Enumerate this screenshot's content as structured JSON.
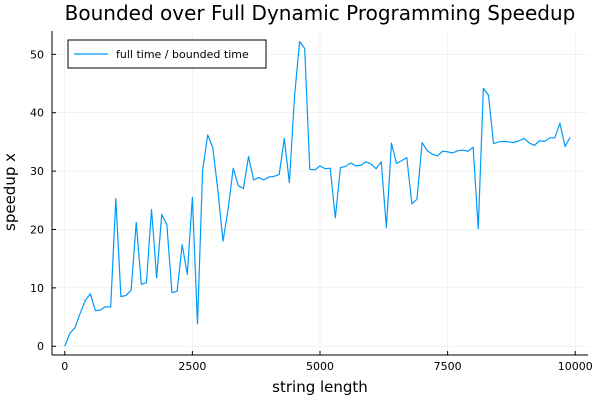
{
  "chart_data": {
    "type": "line",
    "title": "Bounded over Full Dynamic Programming Speedup",
    "xlabel": "string length",
    "ylabel": "speedup x",
    "xlim": [
      -250,
      10250
    ],
    "ylim": [
      -1.5,
      54
    ],
    "xticks": [
      0,
      2500,
      5000,
      7500,
      10000
    ],
    "xtick_labels": [
      "0",
      "2500",
      "5000",
      "7500",
      "10000"
    ],
    "yticks": [
      0,
      10,
      20,
      30,
      40,
      50
    ],
    "ytick_labels": [
      "0",
      "10",
      "20",
      "30",
      "40",
      "50"
    ],
    "grid": true,
    "legend_position": "top-left",
    "series": [
      {
        "name": "full time / bounded time",
        "color": "#009AFA",
        "x": [
          0,
          100,
          200,
          300,
          400,
          500,
          600,
          700,
          800,
          900,
          1000,
          1100,
          1200,
          1300,
          1400,
          1500,
          1600,
          1700,
          1800,
          1900,
          2000,
          2100,
          2200,
          2300,
          2400,
          2500,
          2600,
          2700,
          2800,
          2900,
          3000,
          3100,
          3200,
          3300,
          3400,
          3500,
          3600,
          3700,
          3800,
          3900,
          4000,
          4100,
          4200,
          4300,
          4400,
          4500,
          4600,
          4700,
          4800,
          4900,
          5000,
          5100,
          5200,
          5300,
          5400,
          5500,
          5600,
          5700,
          5800,
          5900,
          6000,
          6100,
          6200,
          6300,
          6400,
          6500,
          6600,
          6700,
          6800,
          6900,
          7000,
          7100,
          7200,
          7300,
          7400,
          7500,
          7600,
          7700,
          7800,
          7900,
          8000,
          8100,
          8200,
          8300,
          8400,
          8500,
          8600,
          8700,
          8800,
          8900,
          9000,
          9100,
          9200,
          9300,
          9400,
          9500,
          9600,
          9700,
          9800,
          9900
        ],
        "y": [
          0,
          2.2,
          3.2,
          5.6,
          7.8,
          9.0,
          6.1,
          6.2,
          6.8,
          6.7,
          25.3,
          8.5,
          8.7,
          9.6,
          21.2,
          10.6,
          10.9,
          23.4,
          11.7,
          22.6,
          20.8,
          9.2,
          9.4,
          17.4,
          12.3,
          25.5,
          3.8,
          30.1,
          36.2,
          34.0,
          26.7,
          18.0,
          23.5,
          30.5,
          27.5,
          27.0,
          32.5,
          28.5,
          28.9,
          28.5,
          29.0,
          29.1,
          29.4,
          35.6,
          28.0,
          42.7,
          52.2,
          51.0,
          30.3,
          30.2,
          30.9,
          30.4,
          30.5,
          22.0,
          30.6,
          30.8,
          31.4,
          30.9,
          31.0,
          31.6,
          31.2,
          30.4,
          31.6,
          20.3,
          34.8,
          31.3,
          31.8,
          32.3,
          24.4,
          25.2,
          34.9,
          33.5,
          32.9,
          32.6,
          33.4,
          33.3,
          33.1,
          33.5,
          33.6,
          33.4,
          34.1,
          20.1,
          44.2,
          43.0,
          34.7,
          35.0,
          35.1,
          35.0,
          34.9,
          35.2,
          35.6,
          34.8,
          34.4,
          35.2,
          35.1,
          35.7,
          35.7,
          38.2,
          34.2,
          35.8
        ]
      }
    ]
  }
}
